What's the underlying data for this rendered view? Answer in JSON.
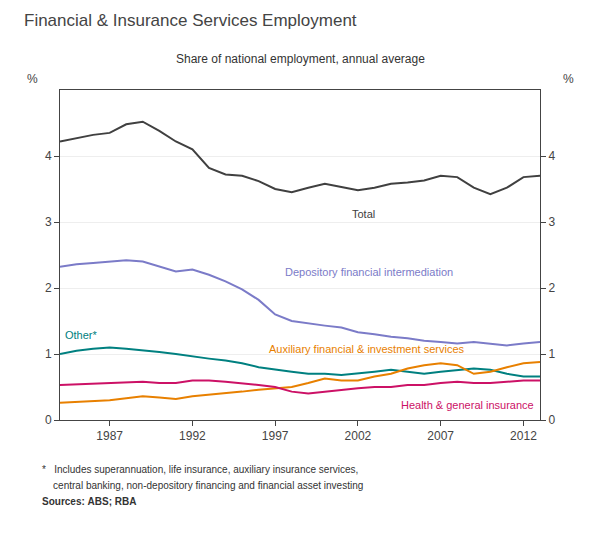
{
  "chart_data": {
    "type": "line",
    "title": "Financial & Insurance Services Employment",
    "subtitle": "Share of national employment, annual average",
    "footnotes": [
      "*   Includes superannuation, life insurance, auxiliary insurance services,",
      "    central banking, non-depository financing and financial asset investing",
      "Sources: ABS; RBA"
    ],
    "ylabel": "%",
    "y2label": "%",
    "x": [
      1984,
      1985,
      1986,
      1987,
      1988,
      1989,
      1990,
      1991,
      1992,
      1993,
      1994,
      1995,
      1996,
      1997,
      1998,
      1999,
      2000,
      2001,
      2002,
      2003,
      2004,
      2005,
      2006,
      2007,
      2008,
      2009,
      2010,
      2011,
      2012,
      2013
    ],
    "xlim": [
      1984,
      2013
    ],
    "xticks": [
      1987,
      1992,
      1997,
      2002,
      2007,
      2012
    ],
    "ylim": [
      0,
      5
    ],
    "yticks": [
      0,
      1,
      2,
      3,
      4
    ],
    "y2lim": [
      0,
      5
    ],
    "y2ticks": [
      0,
      1,
      2,
      3,
      4
    ],
    "grid": true,
    "series": [
      {
        "name": "Total",
        "color": "#404040",
        "values": [
          4.22,
          4.27,
          4.32,
          4.35,
          4.48,
          4.52,
          4.38,
          4.22,
          4.1,
          3.82,
          3.72,
          3.7,
          3.62,
          3.5,
          3.45,
          3.52,
          3.58,
          3.53,
          3.48,
          3.52,
          3.58,
          3.6,
          3.63,
          3.7,
          3.68,
          3.52,
          3.42,
          3.52,
          3.68,
          3.7
        ]
      },
      {
        "name": "Depository financial intermediation",
        "color": "#7b7bc8",
        "values": [
          2.32,
          2.36,
          2.38,
          2.4,
          2.42,
          2.4,
          2.33,
          2.25,
          2.28,
          2.2,
          2.1,
          1.98,
          1.82,
          1.6,
          1.5,
          1.46,
          1.43,
          1.4,
          1.33,
          1.3,
          1.26,
          1.24,
          1.2,
          1.18,
          1.16,
          1.18,
          1.16,
          1.13,
          1.16,
          1.18
        ]
      },
      {
        "name": "Other*",
        "color": "#008080",
        "values": [
          1.0,
          1.05,
          1.08,
          1.1,
          1.08,
          1.06,
          1.03,
          1.0,
          0.96,
          0.93,
          0.9,
          0.86,
          0.8,
          0.76,
          0.73,
          0.7,
          0.7,
          0.68,
          0.7,
          0.73,
          0.76,
          0.73,
          0.7,
          0.73,
          0.76,
          0.78,
          0.76,
          0.7,
          0.66,
          0.66
        ]
      },
      {
        "name": "Auxiliary financial & investment services",
        "color": "#e88000",
        "values": [
          0.26,
          0.27,
          0.28,
          0.3,
          0.33,
          0.36,
          0.34,
          0.32,
          0.36,
          0.38,
          0.4,
          0.43,
          0.46,
          0.48,
          0.5,
          0.56,
          0.63,
          0.6,
          0.6,
          0.66,
          0.7,
          0.78,
          0.83,
          0.86,
          0.83,
          0.7,
          0.73,
          0.8,
          0.86,
          0.88
        ]
      },
      {
        "name": "Health & general insurance",
        "color": "#cc1166",
        "values": [
          0.53,
          0.54,
          0.55,
          0.56,
          0.58,
          0.58,
          0.56,
          0.56,
          0.6,
          0.6,
          0.58,
          0.56,
          0.53,
          0.5,
          0.43,
          0.4,
          0.43,
          0.46,
          0.48,
          0.5,
          0.5,
          0.53,
          0.53,
          0.56,
          0.58,
          0.56,
          0.56,
          0.58,
          0.6,
          0.6
        ]
      }
    ],
    "annotations": [
      {
        "text": "Total",
        "x": 2001.5,
        "y": 3.25
      },
      {
        "text": "Depository financial intermediation",
        "x": 1997.5,
        "y": 2.12
      },
      {
        "text": "Other*",
        "x": 1984.2,
        "y": 1.16
      },
      {
        "text": "Auxiliary financial & investment services",
        "x": 1996.5,
        "y": 0.96
      },
      {
        "text": "Health & general insurance",
        "x": 2004.5,
        "y": 0.35
      }
    ]
  }
}
